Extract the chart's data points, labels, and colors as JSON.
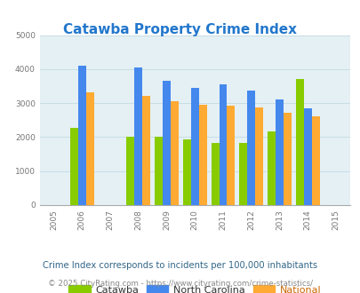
{
  "title": "Catawba Property Crime Index",
  "title_color": "#2277cc",
  "years": [
    2006,
    2008,
    2009,
    2010,
    2011,
    2012,
    2013,
    2014
  ],
  "catawba": [
    2280,
    2020,
    2000,
    1930,
    1840,
    1840,
    2170,
    3710
  ],
  "north_carolina": [
    4100,
    4040,
    3670,
    3450,
    3540,
    3360,
    3120,
    2860
  ],
  "national": [
    3330,
    3220,
    3050,
    2950,
    2930,
    2870,
    2720,
    2600
  ],
  "catawba_color": "#88cc00",
  "nc_color": "#4488ee",
  "national_color": "#ffaa33",
  "bg_color": "#e4f0f4",
  "ylim": [
    0,
    5000
  ],
  "yticks": [
    0,
    1000,
    2000,
    3000,
    4000,
    5000
  ],
  "xlim": [
    2004.5,
    2015.5
  ],
  "xticks": [
    2005,
    2006,
    2007,
    2008,
    2009,
    2010,
    2011,
    2012,
    2013,
    2014,
    2015
  ],
  "legend_labels": [
    "Catawba",
    "North Carolina",
    "National"
  ],
  "legend_label_colors": [
    "#333333",
    "#333333",
    "#cc6600"
  ],
  "footnote1": "Crime Index corresponds to incidents per 100,000 inhabitants",
  "footnote2": "© 2025 CityRating.com - https://www.cityrating.com/crime-statistics/",
  "footnote1_color": "#336688",
  "footnote2_color": "#888888",
  "bar_width": 0.28,
  "grid_color": "#c8dde4"
}
